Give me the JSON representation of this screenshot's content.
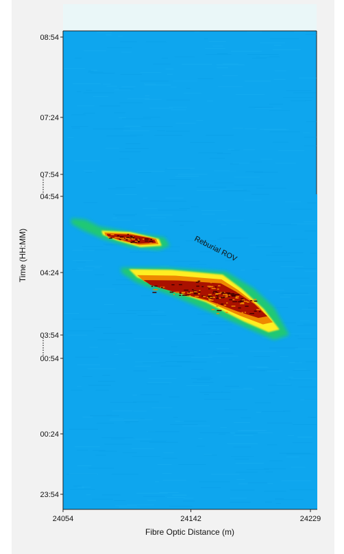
{
  "chart_data": {
    "type": "heatmap",
    "title": "",
    "xlabel": "Fibre Optic Distance (m)",
    "ylabel": "Time (HH:MM)",
    "x_ticks": [
      "24054",
      "24142",
      "24229"
    ],
    "xlim": [
      24054,
      24229
    ],
    "y_segments": [
      {
        "ticks": [
          "08:54",
          "07:24",
          "07:54"
        ]
      },
      {
        "ticks": [
          "04:54",
          "04:24",
          "03:54"
        ]
      },
      {
        "ticks": [
          "00:54",
          "00:24",
          "23:54"
        ]
      }
    ],
    "axis_break_markers": 2,
    "colormap": [
      "#00aaee",
      "#22cc66",
      "#ffee22",
      "#ee8800",
      "#aa1100",
      "#440000"
    ],
    "background_color": "#0ea6ee",
    "events": [
      {
        "name": "",
        "x_range": [
          24074,
          24130
        ],
        "time_range": [
          "04:46",
          "04:38"
        ]
      },
      {
        "name": "",
        "x_range": [
          24100,
          24220
        ],
        "time_range": [
          "04:26",
          "03:52"
        ]
      }
    ],
    "annotation": "Reburial ROV"
  }
}
